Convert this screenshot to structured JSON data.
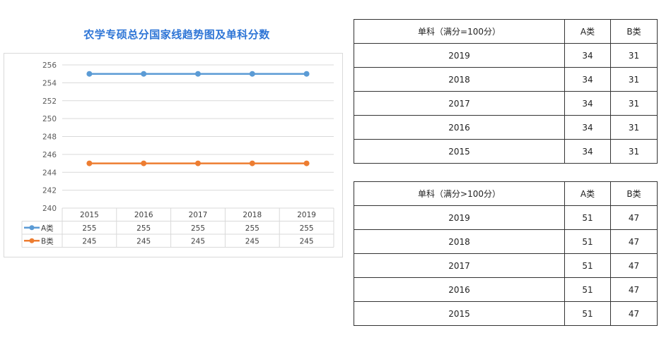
{
  "chart_data": {
    "type": "line",
    "title": "农学专硕总分国家线趋势图及单科分数",
    "categories": [
      "2015",
      "2016",
      "2017",
      "2018",
      "2019"
    ],
    "series": [
      {
        "name": "A类",
        "values": [
          255,
          255,
          255,
          255,
          255
        ],
        "color": "#5b9bd5"
      },
      {
        "name": "B类",
        "values": [
          245,
          245,
          245,
          245,
          245
        ],
        "color": "#ed7d31"
      }
    ],
    "y_ticks": [
      "256",
      "254",
      "252",
      "250",
      "248",
      "246",
      "244",
      "242",
      "240"
    ],
    "ylim": [
      240,
      256
    ],
    "grid": true,
    "legend": "data-table"
  },
  "tables": [
    {
      "header": [
        "单科（满分=100分）",
        "A类",
        "B类"
      ],
      "rows": [
        [
          "2019",
          "34",
          "31"
        ],
        [
          "2018",
          "34",
          "31"
        ],
        [
          "2017",
          "34",
          "31"
        ],
        [
          "2016",
          "34",
          "31"
        ],
        [
          "2015",
          "34",
          "31"
        ]
      ]
    },
    {
      "header": [
        "单科（满分>100分）",
        "A类",
        "B类"
      ],
      "rows": [
        [
          "2019",
          "51",
          "47"
        ],
        [
          "2018",
          "51",
          "47"
        ],
        [
          "2017",
          "51",
          "47"
        ],
        [
          "2016",
          "51",
          "47"
        ],
        [
          "2015",
          "51",
          "47"
        ]
      ]
    }
  ]
}
